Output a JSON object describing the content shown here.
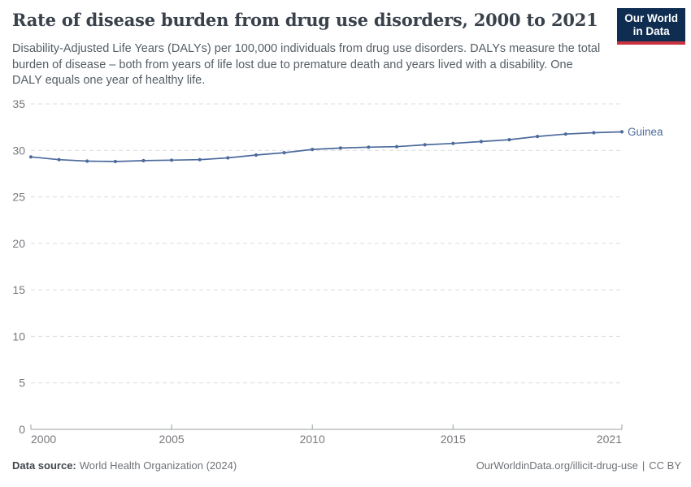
{
  "header": {
    "title": "Rate of disease burden from drug use disorders, 2000 to 2021",
    "subtitle": "Disability-Adjusted Life Years (DALYs) per 100,000 individuals from drug use disorders. DALYs measure the total burden of disease – both from years of life lost due to premature death and years lived with a disability. One DALY equals one year of healthy life.",
    "logo": {
      "line1": "Our World",
      "line2": "in Data",
      "bg_color": "#0e2d51",
      "accent_color": "#c8333f"
    }
  },
  "chart_data": {
    "type": "line",
    "title": "Rate of disease burden from drug use disorders, 2000 to 2021",
    "ylabel": "",
    "xlabel": "",
    "xlim": [
      2000,
      2021
    ],
    "ylim": [
      0,
      35
    ],
    "yticks": [
      0,
      5,
      10,
      15,
      20,
      25,
      30,
      35
    ],
    "xticks": [
      2000,
      2005,
      2010,
      2015,
      2021
    ],
    "grid": "horizontal-dashed",
    "legend": "end-of-line-label",
    "series": [
      {
        "name": "Guinea",
        "color": "#4c6a9c",
        "x": [
          2000,
          2001,
          2002,
          2003,
          2004,
          2005,
          2006,
          2007,
          2008,
          2009,
          2010,
          2011,
          2012,
          2013,
          2014,
          2015,
          2016,
          2017,
          2018,
          2019,
          2020,
          2021
        ],
        "values": [
          29.3,
          29.0,
          28.85,
          28.8,
          28.9,
          28.95,
          29.0,
          29.2,
          29.5,
          29.75,
          30.1,
          30.25,
          30.35,
          30.4,
          30.6,
          30.75,
          30.95,
          31.15,
          31.5,
          31.75,
          31.9,
          32.0
        ]
      }
    ],
    "style": {
      "grid_color": "#dcdcdc",
      "axis_color": "#989da2",
      "tick_color": "#76797d"
    }
  },
  "footer": {
    "datasource_label": "Data source:",
    "datasource_value": "World Health Organization (2024)",
    "link": "OurWorldinData.org/illicit-drug-use",
    "divider": "|",
    "license": "CC BY"
  }
}
